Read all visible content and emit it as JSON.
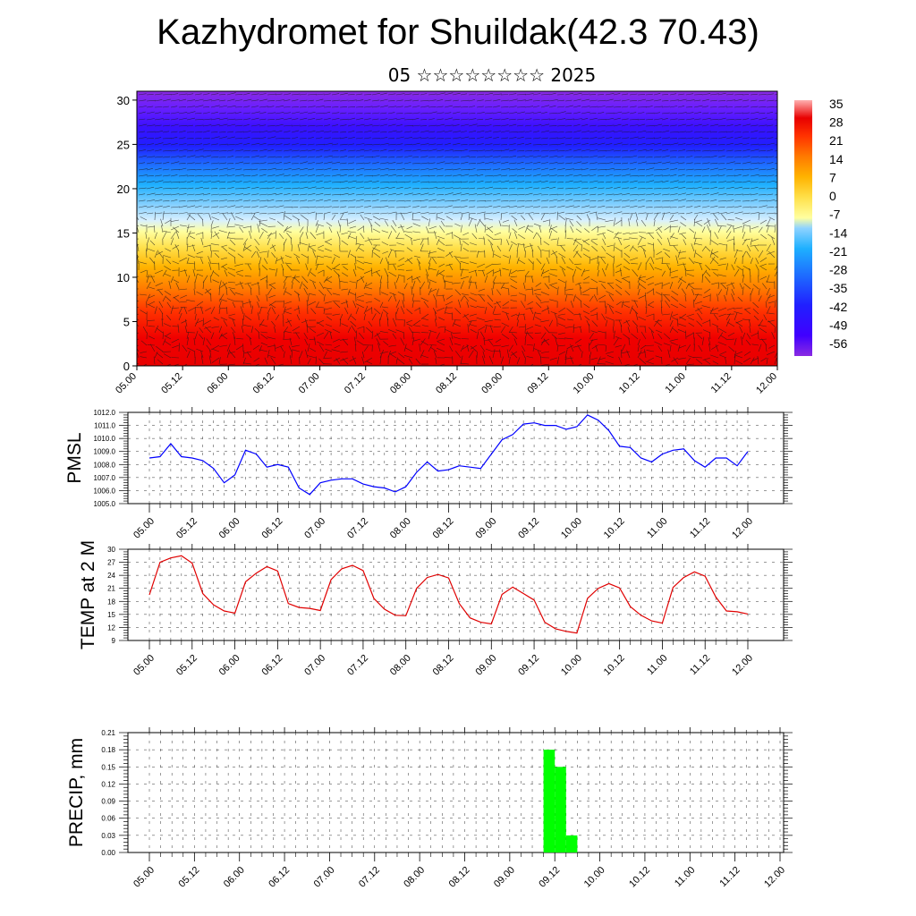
{
  "header": {
    "title": "Kazhydromet for Shuildak(42.3 70.43)",
    "subtitle": "05 ☆☆☆☆☆☆☆☆ 2025"
  },
  "chart_data": [
    {
      "type": "heatmap",
      "name": "cross-section",
      "x_ticks": [
        "05.00",
        "05.12",
        "06.00",
        "06.12",
        "07.00",
        "07.12",
        "08.00",
        "08.12",
        "09.00",
        "09.12",
        "10.00",
        "10.12",
        "11.00",
        "11.12",
        "12.00"
      ],
      "y_ticks": [
        0,
        5,
        10,
        15,
        20,
        25,
        30
      ],
      "ylim": [
        0,
        31
      ],
      "colorbar_labels": [
        "35",
        "28",
        "21",
        "14",
        "7",
        "0",
        "-7",
        "-14",
        "-21",
        "-28",
        "-35",
        "-42",
        "-49",
        "-56"
      ],
      "colors": {
        "warm": "#e80000",
        "neutral": "#ffff99",
        "cold": "#1e90ff",
        "deep_cold": "#4000ff",
        "top": "#8a2be2"
      },
      "overlay": "wind-barbs"
    },
    {
      "type": "line",
      "ylabel": "PMSL",
      "x_ticks": [
        "05.00",
        "05.12",
        "06.00",
        "06.12",
        "07.00",
        "07.12",
        "08.00",
        "08.12",
        "09.00",
        "09.12",
        "10.00",
        "10.12",
        "11.00",
        "11.12",
        "12.00"
      ],
      "y_ticks": [
        "1005.0",
        "1006.0",
        "1007.0",
        "1008.0",
        "1009.0",
        "1010.0",
        "1011.0",
        "1012.0"
      ],
      "ylim": [
        1005,
        1012
      ],
      "color": "#0000ff",
      "values": [
        1008.5,
        1008.6,
        1009.6,
        1008.6,
        1008.5,
        1008.3,
        1007.7,
        1006.6,
        1007.2,
        1009.1,
        1008.8,
        1007.8,
        1008.0,
        1007.8,
        1006.2,
        1005.7,
        1006.6,
        1006.8,
        1006.9,
        1006.9,
        1006.5,
        1006.3,
        1006.2,
        1005.9,
        1006.3,
        1007.4,
        1008.2,
        1007.5,
        1007.6,
        1007.9,
        1007.8,
        1007.7,
        1008.8,
        1009.9,
        1010.3,
        1011.1,
        1011.2,
        1011.0,
        1011.0,
        1010.7,
        1010.9,
        1011.8,
        1011.4,
        1010.6,
        1009.4,
        1009.3,
        1008.5,
        1008.2,
        1008.8,
        1009.1,
        1009.2,
        1008.3,
        1007.8,
        1008.5,
        1008.5,
        1007.9,
        1009.0
      ]
    },
    {
      "type": "line",
      "ylabel": "TEMP at 2 M",
      "x_ticks": [
        "05.00",
        "05.12",
        "06.00",
        "06.12",
        "07.00",
        "07.12",
        "08.00",
        "08.12",
        "09.00",
        "09.12",
        "10.00",
        "10.12",
        "11.00",
        "11.12",
        "12.00"
      ],
      "y_ticks": [
        "9",
        "12",
        "15",
        "18",
        "21",
        "24",
        "27",
        "30"
      ],
      "ylim": [
        9,
        30
      ],
      "color": "#e00000",
      "values": [
        19.5,
        27.0,
        28.0,
        28.5,
        26.8,
        19.8,
        17.2,
        15.8,
        15.3,
        22.5,
        24.5,
        26.0,
        25.0,
        17.5,
        16.6,
        16.4,
        15.9,
        23.0,
        25.5,
        26.3,
        25.1,
        18.7,
        16.2,
        14.8,
        14.7,
        21.0,
        23.5,
        24.2,
        23.4,
        17.5,
        14.2,
        13.2,
        12.8,
        19.6,
        21.3,
        19.8,
        18.3,
        13.2,
        11.7,
        11.1,
        10.7,
        18.7,
        21.0,
        22.1,
        21.1,
        16.8,
        14.8,
        13.5,
        13.0,
        21.2,
        23.5,
        24.8,
        23.8,
        19.0,
        15.8,
        15.6,
        15.1
      ]
    },
    {
      "type": "bar",
      "ylabel": "PRECIP, mm",
      "x_ticks": [
        "05.00",
        "05.12",
        "06.00",
        "06.12",
        "07.00",
        "07.12",
        "08.00",
        "08.12",
        "09.00",
        "09.12",
        "10.00",
        "10.12",
        "11.00",
        "11.12",
        "12.00"
      ],
      "y_ticks": [
        "0.00",
        "0.03",
        "0.06",
        "0.09",
        "0.12",
        "0.15",
        "0.18",
        "0.21"
      ],
      "ylim": [
        0,
        0.21
      ],
      "color": "#00ff00",
      "bars": [
        {
          "x": 35,
          "value": 0.18
        },
        {
          "x": 36,
          "value": 0.15
        },
        {
          "x": 37,
          "value": 0.03
        }
      ]
    }
  ]
}
